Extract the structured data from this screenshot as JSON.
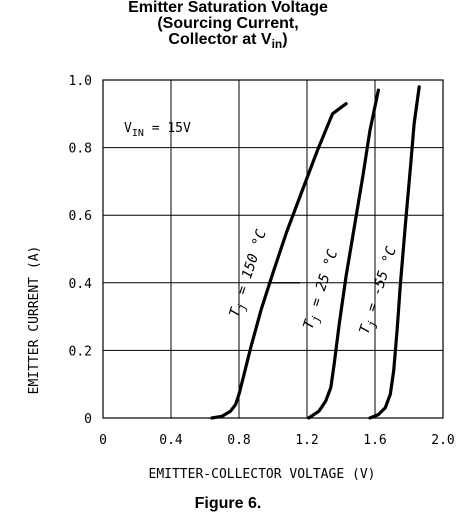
{
  "title": {
    "line1": "Emitter Saturation Voltage",
    "line2": "(Sourcing Current,",
    "line3_prefix": "Collector at V",
    "line3_sub": "in",
    "line3_suffix": ")"
  },
  "caption": "Figure 6.",
  "chart_data": {
    "type": "line",
    "title": "Emitter Saturation Voltage (Sourcing Current, Collector at Vin)",
    "xlabel": "EMITTER-COLLECTOR VOLTAGE (V)",
    "ylabel": "EMITTER CURRENT (A)",
    "xlim": [
      0,
      2.0
    ],
    "ylim": [
      0,
      1.0
    ],
    "x_ticks": [
      "0",
      "0.4",
      "0.8",
      "1.2",
      "1.6",
      "2.0"
    ],
    "y_ticks": [
      "0",
      "0.2",
      "0.4",
      "0.6",
      "0.8",
      "1.0"
    ],
    "grid": true,
    "annotation": {
      "prefix": "V",
      "sub": "IN",
      "suffix": " = 15V"
    },
    "series": [
      {
        "name": "Tj = 150 °C",
        "label_prefix": "T",
        "label_sub": "j",
        "label_suffix": " = 150 °C",
        "x": [
          0.64,
          0.7,
          0.75,
          0.78,
          0.8,
          0.83,
          0.87,
          0.93,
          1.0,
          1.08,
          1.17,
          1.26,
          1.35,
          1.43
        ],
        "y": [
          0.0,
          0.005,
          0.02,
          0.04,
          0.07,
          0.13,
          0.21,
          0.32,
          0.43,
          0.55,
          0.67,
          0.79,
          0.9,
          0.93
        ]
      },
      {
        "name": "Tj = 25 °C",
        "label_prefix": "T",
        "label_sub": "j",
        "label_suffix": " = 25 °C",
        "x": [
          1.21,
          1.27,
          1.31,
          1.34,
          1.36,
          1.39,
          1.43,
          1.48,
          1.53,
          1.57,
          1.62
        ],
        "y": [
          0.0,
          0.02,
          0.05,
          0.09,
          0.16,
          0.28,
          0.42,
          0.57,
          0.72,
          0.85,
          0.97
        ]
      },
      {
        "name": "Tj = -55 °C",
        "label_prefix": "T",
        "label_sub": "j",
        "label_suffix": " = -55 °C",
        "x": [
          1.57,
          1.62,
          1.66,
          1.69,
          1.71,
          1.73,
          1.75,
          1.78,
          1.81,
          1.83,
          1.86
        ],
        "y": [
          0.0,
          0.01,
          0.03,
          0.07,
          0.14,
          0.26,
          0.4,
          0.58,
          0.75,
          0.87,
          0.98
        ]
      }
    ],
    "colors": {
      "line": "#000000",
      "grid": "#000000",
      "background": "#ffffff"
    }
  }
}
